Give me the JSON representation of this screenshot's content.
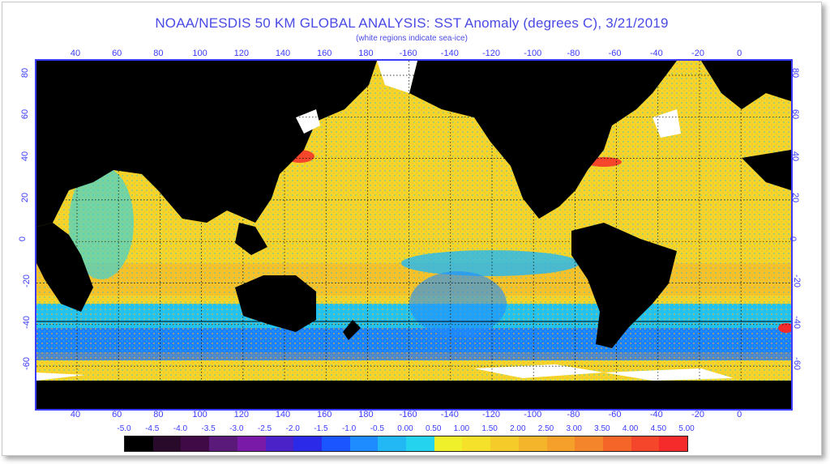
{
  "title": "NOAA/NESDIS 50 KM GLOBAL ANALYSIS: SST Anomaly (degrees C), 3/21/2019",
  "subtitle": "(white regions indicate sea-ice)",
  "lon_ticks": [
    "40",
    "60",
    "80",
    "100",
    "120",
    "140",
    "160",
    "180",
    "-160",
    "-140",
    "-120",
    "-100",
    "-80",
    "-60",
    "-40",
    "-20",
    "0"
  ],
  "lat_ticks": [
    "80",
    "60",
    "40",
    "20",
    "0",
    "-20",
    "-40",
    "-60"
  ],
  "legend": {
    "labels": [
      "-5.0",
      "-4.5",
      "-4.0",
      "-3.5",
      "-3.0",
      "-2.5",
      "-2.0",
      "-1.5",
      "-1.0",
      "-0.5",
      "0.00",
      "0.50",
      "1.00",
      "1.50",
      "2.00",
      "2.50",
      "3.00",
      "3.50",
      "4.00",
      "4.50",
      "5.00"
    ],
    "colors": [
      "#000000",
      "#2a0a2a",
      "#3f0a45",
      "#5a1a7a",
      "#7a1aa8",
      "#4a22c8",
      "#2a2ae8",
      "#1a55ff",
      "#1e8cff",
      "#22b8f5",
      "#24d3ee",
      "#f0f02a",
      "#f5e02a",
      "#f5cb2a",
      "#f5b52a",
      "#f5a02a",
      "#f5852a",
      "#f5652a",
      "#f5452a",
      "#f52a2a"
    ]
  },
  "colors": {
    "land": "#000000",
    "ice": "#ffffff",
    "frame_blue": "#3b3bff",
    "title_blue": "#4a4ae6"
  }
}
